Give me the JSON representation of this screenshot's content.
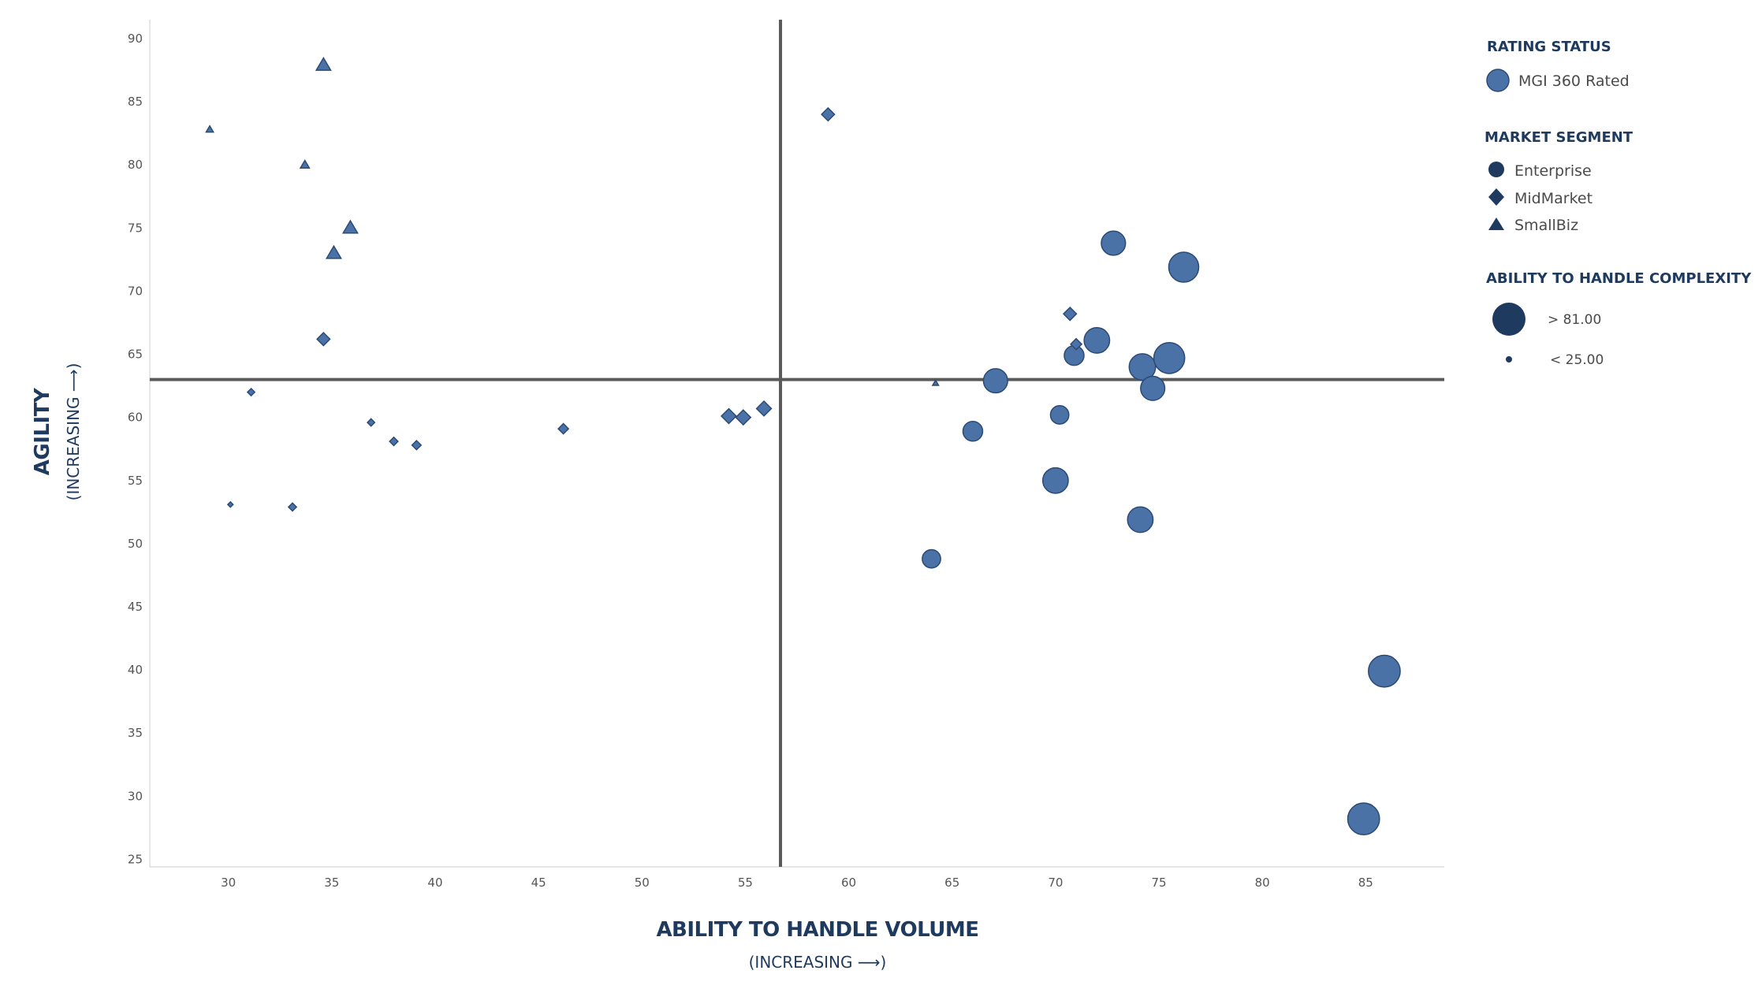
{
  "chart_data": {
    "type": "scatter",
    "xlabel": "ABILITY TO HANDLE VOLUME",
    "xlabel_sub": "(INCREASING ⟶)",
    "ylabel": "AGILITY",
    "ylabel_sub": "(INCREASING ⟶)",
    "xlim": [
      26.2,
      88.8
    ],
    "ylim": [
      24.4,
      91.5
    ],
    "xticks": [
      30,
      35,
      40,
      45,
      50,
      55,
      60,
      65,
      70,
      75,
      80,
      85
    ],
    "yticks": [
      25,
      30,
      35,
      40,
      45,
      50,
      55,
      60,
      65,
      70,
      75,
      80,
      85,
      90
    ],
    "quadrant_lines": {
      "x": 56.7,
      "y": 63
    },
    "grid": false,
    "colors": {
      "marker_fill": "#4b72a6",
      "marker_stroke": "#2b4a75",
      "legend_marker": "#1e3a5f",
      "quadrant_line": "#5a5a5a",
      "axis": "#cccccc"
    },
    "legend": {
      "placement": "right",
      "rating_status": {
        "title": "RATING STATUS",
        "items": [
          {
            "label": "MGI 360 Rated",
            "marker": "circle"
          }
        ]
      },
      "market_segment": {
        "title": "MARKET SEGMENT",
        "items": [
          {
            "label": "Enterprise",
            "marker": "circle"
          },
          {
            "label": "MidMarket",
            "marker": "diamond"
          },
          {
            "label": "SmallBiz",
            "marker": "triangle"
          }
        ]
      },
      "complexity": {
        "title": "ABILITY TO HANDLE COMPLEXITY",
        "items": [
          {
            "label": "> 81.00",
            "marker": "large-circle"
          },
          {
            "label": "< 25.00",
            "marker": "small-circle"
          }
        ]
      }
    },
    "series": [
      {
        "name": "Enterprise",
        "marker": "circle",
        "points": [
          {
            "x": 72.8,
            "y": 73.8,
            "complexity": 65
          },
          {
            "x": 76.2,
            "y": 71.9,
            "complexity": 78
          },
          {
            "x": 72.0,
            "y": 66.1,
            "complexity": 68
          },
          {
            "x": 70.9,
            "y": 64.9,
            "complexity": 55
          },
          {
            "x": 74.2,
            "y": 64.0,
            "complexity": 70
          },
          {
            "x": 75.5,
            "y": 64.7,
            "complexity": 80
          },
          {
            "x": 67.1,
            "y": 62.9,
            "complexity": 65
          },
          {
            "x": 74.7,
            "y": 62.3,
            "complexity": 65
          },
          {
            "x": 70.2,
            "y": 60.2,
            "complexity": 52
          },
          {
            "x": 66.0,
            "y": 58.9,
            "complexity": 55
          },
          {
            "x": 70.0,
            "y": 55.0,
            "complexity": 68
          },
          {
            "x": 74.1,
            "y": 51.9,
            "complexity": 68
          },
          {
            "x": 64.0,
            "y": 48.8,
            "complexity": 52
          },
          {
            "x": 85.9,
            "y": 39.9,
            "complexity": 82
          },
          {
            "x": 84.9,
            "y": 28.2,
            "complexity": 82
          }
        ]
      },
      {
        "name": "MidMarket",
        "marker": "diamond",
        "points": [
          {
            "x": 59.0,
            "y": 84.0,
            "complexity": 45
          },
          {
            "x": 70.7,
            "y": 68.2,
            "complexity": 45
          },
          {
            "x": 71.0,
            "y": 65.8,
            "complexity": 40
          },
          {
            "x": 34.6,
            "y": 66.2,
            "complexity": 45
          },
          {
            "x": 31.1,
            "y": 62.0,
            "complexity": 30
          },
          {
            "x": 55.9,
            "y": 60.7,
            "complexity": 50
          },
          {
            "x": 54.2,
            "y": 60.1,
            "complexity": 50
          },
          {
            "x": 54.9,
            "y": 60.0,
            "complexity": 50
          },
          {
            "x": 36.9,
            "y": 59.6,
            "complexity": 30
          },
          {
            "x": 46.2,
            "y": 59.1,
            "complexity": 38
          },
          {
            "x": 38.0,
            "y": 58.1,
            "complexity": 33
          },
          {
            "x": 39.1,
            "y": 57.8,
            "complexity": 35
          },
          {
            "x": 30.1,
            "y": 53.1,
            "complexity": 25
          },
          {
            "x": 33.1,
            "y": 52.9,
            "complexity": 32
          }
        ]
      },
      {
        "name": "SmallBiz",
        "marker": "triangle",
        "points": [
          {
            "x": 34.6,
            "y": 87.9,
            "complexity": 45
          },
          {
            "x": 29.1,
            "y": 82.8,
            "complexity": 28
          },
          {
            "x": 33.7,
            "y": 80.0,
            "complexity": 32
          },
          {
            "x": 35.9,
            "y": 75.0,
            "complexity": 45
          },
          {
            "x": 35.1,
            "y": 73.0,
            "complexity": 45
          },
          {
            "x": 64.2,
            "y": 62.7,
            "complexity": 25
          }
        ]
      }
    ]
  }
}
